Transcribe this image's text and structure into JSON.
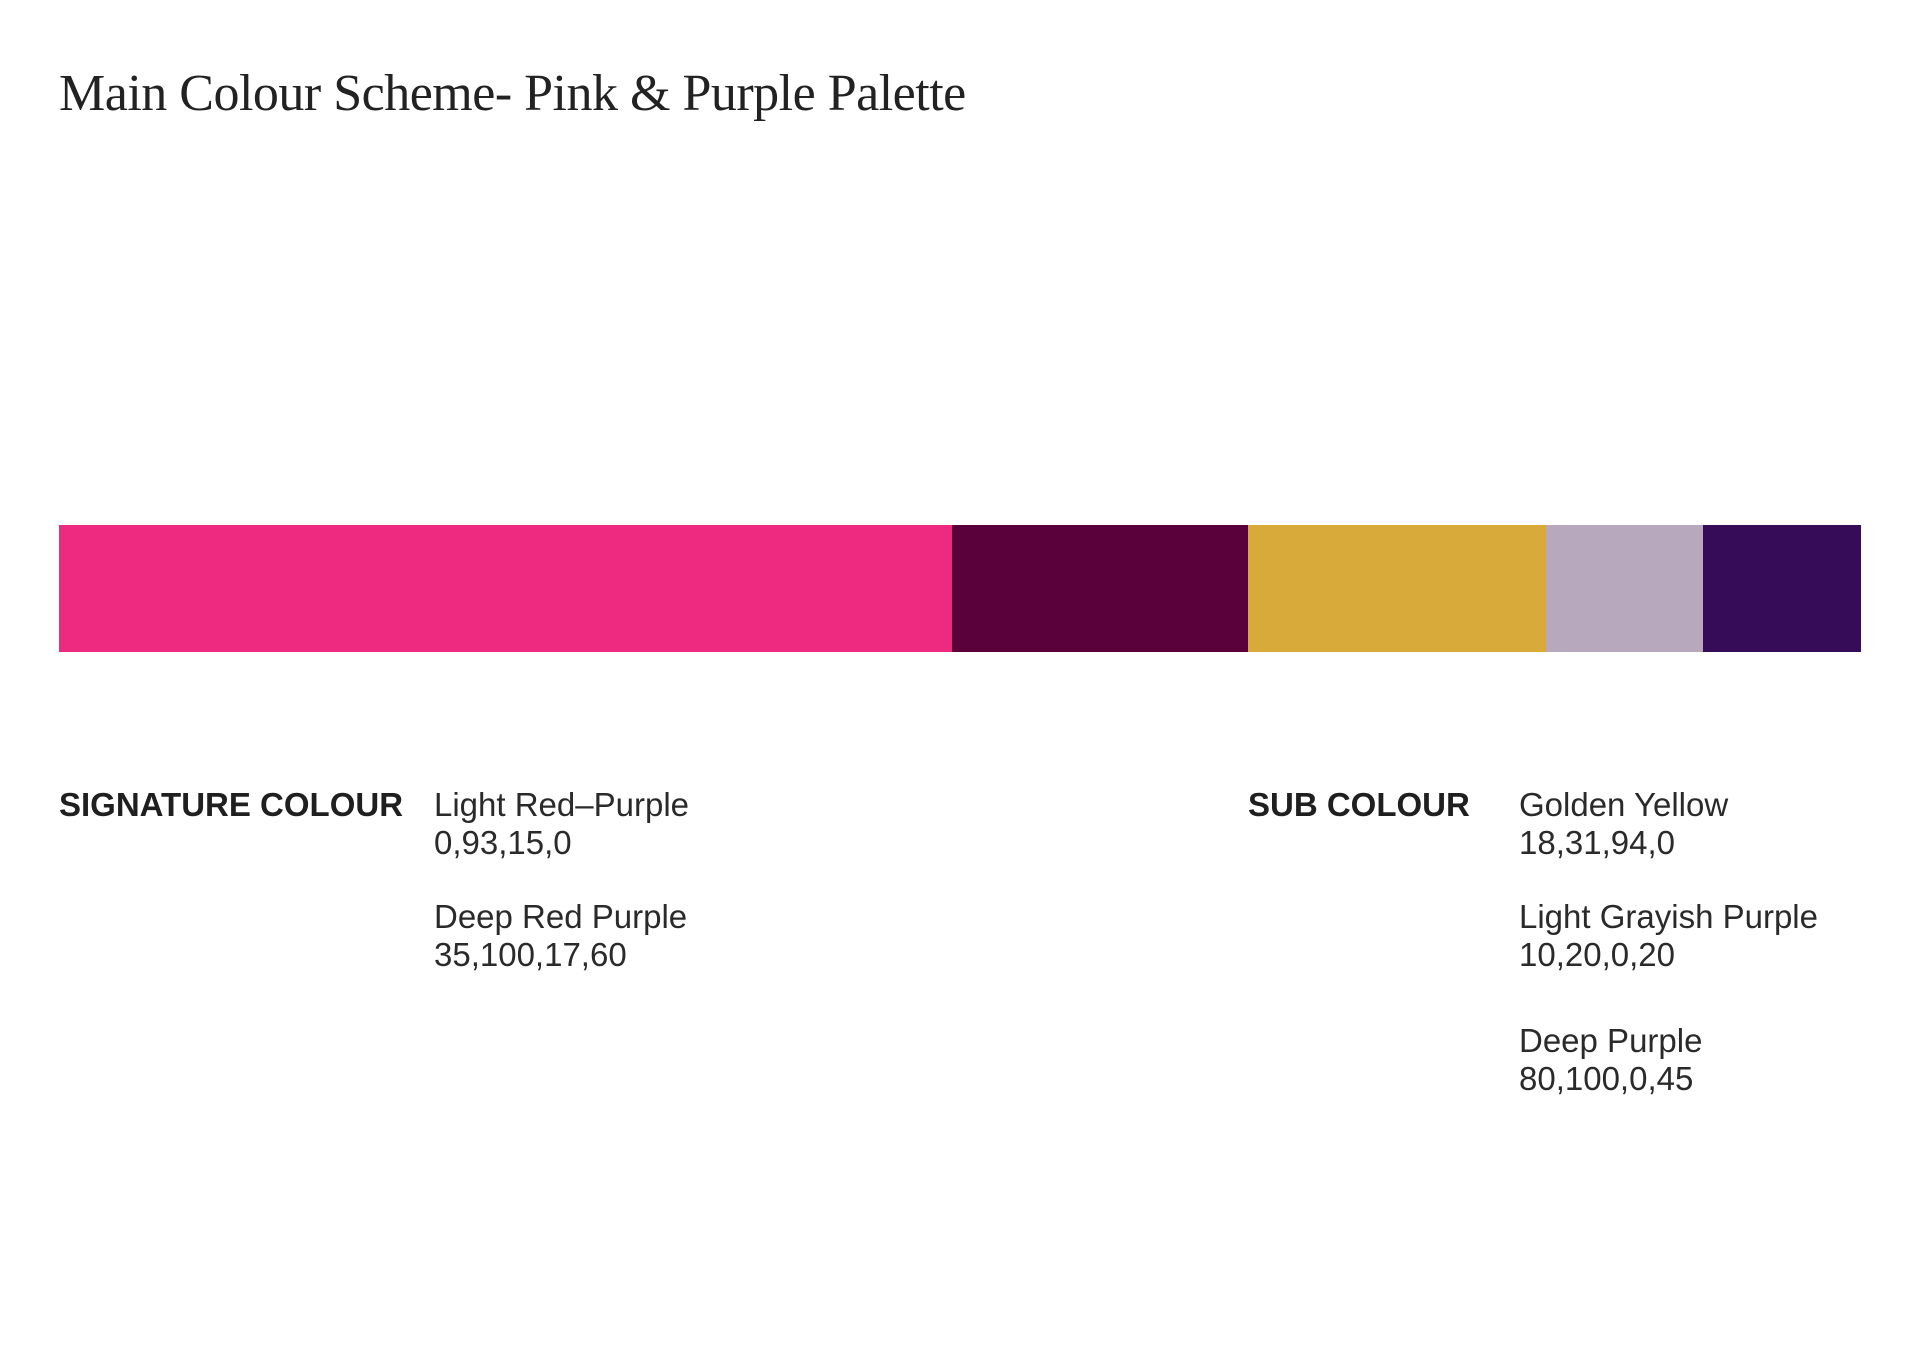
{
  "page": {
    "title": "Main Colour Scheme- Pink & Purple Palette"
  },
  "palette": {
    "swatches": [
      {
        "name": "Light Red-Purple",
        "hex": "#ED2A7F"
      },
      {
        "name": "Deep Red Purple",
        "hex": "#5A003A"
      },
      {
        "name": "Golden Yellow",
        "hex": "#D8AA3A"
      },
      {
        "name": "Light Grayish Purple",
        "hex": "#B8A8BE"
      },
      {
        "name": "Deep Purple",
        "hex": "#360C58"
      }
    ]
  },
  "signature": {
    "heading": "SIGNATURE COLOUR",
    "colours": [
      {
        "name": "Light Red–Purple",
        "cmyk": "0,93,15,0"
      },
      {
        "name": "Deep Red Purple",
        "cmyk": "35,100,17,60"
      }
    ]
  },
  "sub": {
    "heading": "SUB COLOUR",
    "colours": [
      {
        "name": "Golden Yellow",
        "cmyk": "18,31,94,0"
      },
      {
        "name": "Light Grayish Purple",
        "cmyk": "10,20,0,20"
      },
      {
        "name": "Deep Purple",
        "cmyk": "80,100,0,45"
      }
    ]
  }
}
